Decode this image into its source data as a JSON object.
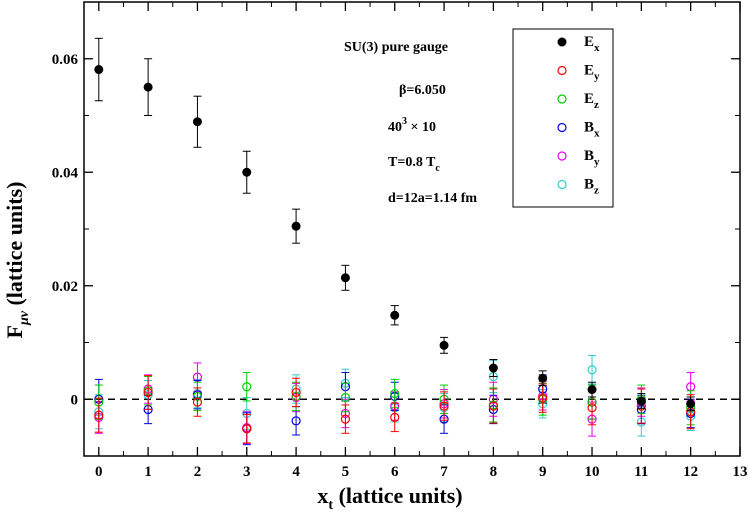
{
  "chart_data": {
    "type": "scatter",
    "title": "",
    "xlabel": {
      "main": "x",
      "sub": "t",
      "rest": " (lattice units)"
    },
    "ylabel": {
      "main": "F",
      "sub": "μν",
      "rest": " (lattice units)"
    },
    "xlim": [
      -0.3,
      13
    ],
    "ylim": [
      -0.01,
      0.07
    ],
    "x_ticks": [
      0,
      1,
      2,
      3,
      4,
      5,
      6,
      7,
      8,
      9,
      10,
      11,
      12,
      13
    ],
    "y_ticks": [
      0,
      0.02,
      0.04,
      0.06
    ],
    "x_tick_labels": [
      "0",
      "1",
      "2",
      "3",
      "4",
      "5",
      "6",
      "7",
      "8",
      "9",
      "10",
      "11",
      "12",
      "13"
    ],
    "y_tick_labels": [
      "0",
      "0.02",
      "0.04",
      "0.06"
    ],
    "reference_line": {
      "y": 0,
      "style": "dashed",
      "color": "#000000"
    },
    "grid": false,
    "annotations": [
      {
        "text": "SU(3) pure gauge"
      },
      {
        "text": "β=6.050"
      },
      {
        "main": "40",
        "sup": "3",
        "rest": " × 10"
      },
      {
        "main": "T=0.8 T",
        "sub": "c"
      },
      {
        "text": "d=12a=1.14 fm"
      }
    ],
    "legend_position": "top-right",
    "series": [
      {
        "label": "E",
        "sub": "x",
        "marker": "filled-circle",
        "color": "#000000",
        "x": [
          0,
          1,
          2,
          3,
          4,
          5,
          6,
          7,
          8,
          9,
          10,
          11,
          12
        ],
        "y": [
          0.0581,
          0.055,
          0.0489,
          0.04,
          0.0305,
          0.0214,
          0.0148,
          0.0095,
          0.0055,
          0.0037,
          0.0017,
          -0.0003,
          -0.0008
        ],
        "err": [
          0.0055,
          0.005,
          0.0045,
          0.0037,
          0.003,
          0.0022,
          0.0017,
          0.0014,
          0.0015,
          0.0013,
          0.0013,
          0.0013,
          0.0012
        ]
      },
      {
        "label": "E",
        "sub": "y",
        "marker": "open-circle",
        "color": "#ff0000",
        "x": [
          0,
          1,
          2,
          3,
          4,
          5,
          6,
          7,
          8,
          9,
          10,
          11,
          12
        ],
        "y": [
          -0.0028,
          0.0012,
          -0.0005,
          -0.0052,
          0.0012,
          -0.0035,
          -0.0032,
          -0.0012,
          -0.0012,
          0.0002,
          -0.0015,
          -0.0012,
          -0.0022
        ],
        "err": [
          0.003,
          0.003,
          0.0025,
          0.0025,
          0.0025,
          0.0025,
          0.0025,
          0.0025,
          0.003,
          0.0025,
          0.003,
          0.003,
          0.003
        ]
      },
      {
        "label": "E",
        "sub": "z",
        "marker": "open-circle",
        "color": "#00cc00",
        "x": [
          0,
          1,
          2,
          3,
          4,
          5,
          6,
          7,
          8,
          9,
          10,
          11,
          12
        ],
        "y": [
          -0.0005,
          0.0015,
          0.0005,
          0.0022,
          0.0005,
          0.0003,
          0.001,
          0.0,
          -0.001,
          0.0,
          -0.0005,
          0.0,
          -0.0015
        ],
        "err": [
          0.003,
          0.0025,
          0.0025,
          0.0025,
          0.0025,
          0.0025,
          0.0025,
          0.0025,
          0.003,
          0.0028,
          0.003,
          0.0025,
          0.003
        ]
      },
      {
        "label": "B",
        "sub": "x",
        "marker": "open-circle",
        "color": "#0000dd",
        "x": [
          0,
          1,
          2,
          3,
          4,
          5,
          6,
          7,
          8,
          9,
          10,
          11,
          12
        ],
        "y": [
          0.0,
          -0.0018,
          0.0008,
          -0.0052,
          -0.0038,
          0.0022,
          0.0005,
          -0.0035,
          -0.0018,
          0.0018,
          -0.0005,
          -0.0018,
          -0.0025
        ],
        "err": [
          0.0035,
          0.0025,
          0.0025,
          0.0028,
          0.0025,
          0.0025,
          0.0025,
          0.0025,
          0.0025,
          0.0025,
          0.003,
          0.0025,
          0.0025
        ]
      },
      {
        "label": "B",
        "sub": "y",
        "marker": "open-circle",
        "color": "#ee00ee",
        "x": [
          0,
          1,
          2,
          3,
          4,
          5,
          6,
          7,
          8,
          9,
          10,
          11,
          12
        ],
        "y": [
          -0.0032,
          0.0018,
          0.0039,
          -0.005,
          0.0003,
          -0.0025,
          -0.0012,
          -0.0008,
          0.0,
          0.0006,
          -0.0035,
          -0.0005,
          0.0022
        ],
        "err": [
          0.0028,
          0.0025,
          0.0025,
          0.0028,
          0.0025,
          0.0025,
          0.0025,
          0.0025,
          0.003,
          0.0025,
          0.003,
          0.0025,
          0.0025
        ]
      },
      {
        "label": "B",
        "sub": "z",
        "marker": "open-circle",
        "color": "#33cccc",
        "x": [
          0,
          1,
          2,
          3,
          4,
          5,
          6,
          7,
          8,
          9,
          10,
          11,
          12
        ],
        "y": [
          -0.0022,
          0.0008,
          0.001,
          -0.0025,
          0.0018,
          0.0028,
          -0.0015,
          -0.0015,
          0.004,
          -0.0008,
          0.0052,
          -0.004,
          -0.003
        ],
        "err": [
          0.003,
          0.0025,
          0.0025,
          0.0028,
          0.0025,
          0.0025,
          0.0025,
          0.0025,
          0.0028,
          0.0025,
          0.0025,
          0.0025,
          0.0025
        ]
      }
    ]
  }
}
